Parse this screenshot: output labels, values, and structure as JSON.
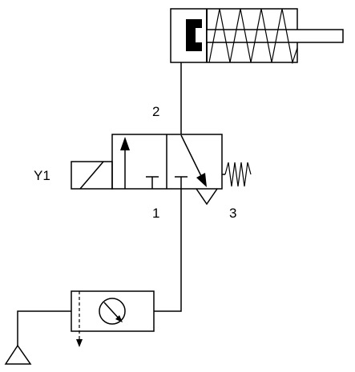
{
  "labels": {
    "solenoid": "Y1",
    "port_outlet": "2",
    "port_supply": "1",
    "port_exhaust": "3"
  },
  "colors": {
    "stroke": "#000000",
    "background": "#ffffff"
  },
  "components": [
    {
      "id": "single-acting-cylinder",
      "kind": "single-acting cylinder, spring return"
    },
    {
      "id": "directional-valve-3-2",
      "kind": "3/2 valve, solenoid actuated, spring return"
    },
    {
      "id": "filter-regulator",
      "kind": "pressure regulator with gauge"
    },
    {
      "id": "pressure-source",
      "kind": "air supply"
    }
  ]
}
